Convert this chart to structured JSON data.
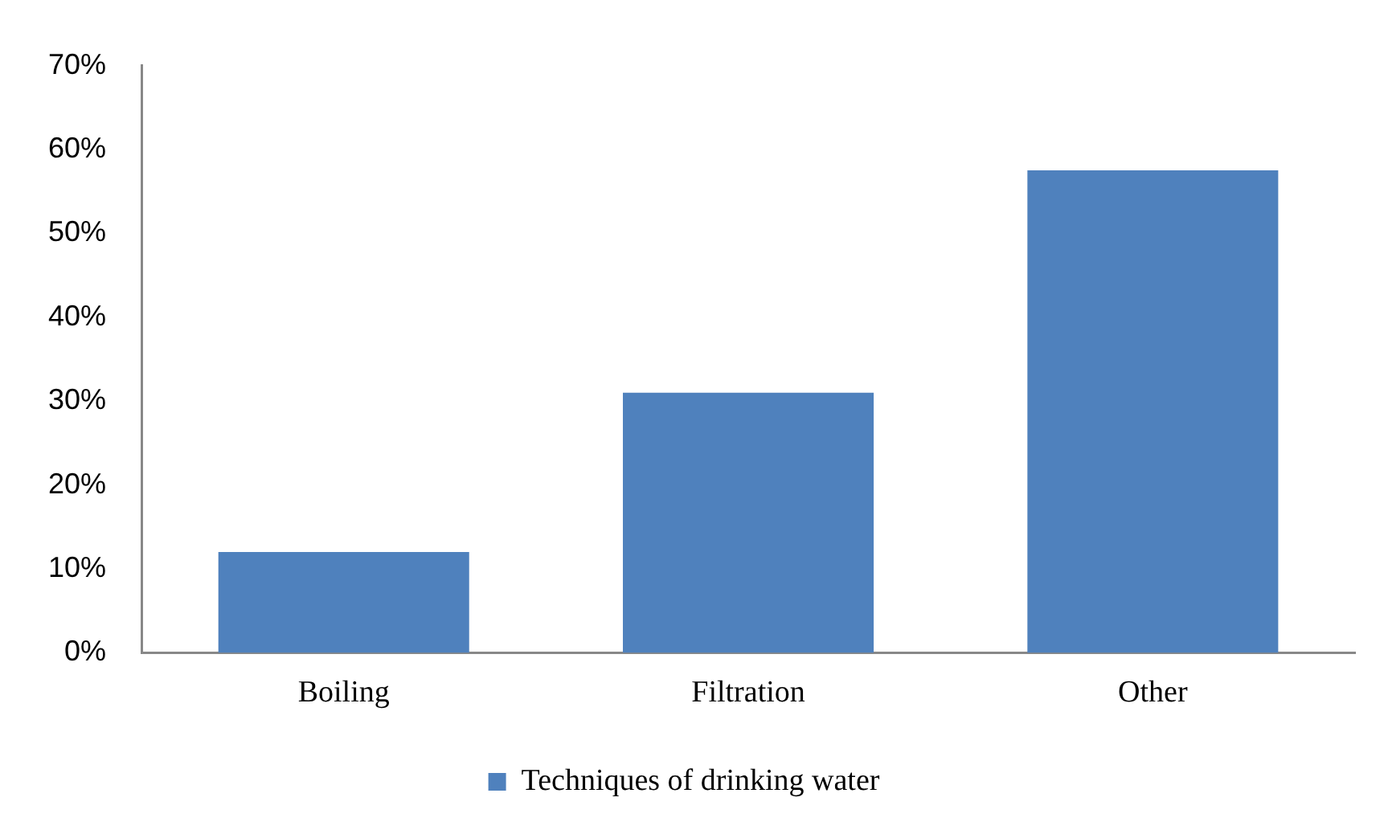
{
  "chart_data": {
    "type": "bar",
    "categories": [
      "Boiling",
      "Filtration",
      "Other"
    ],
    "series": [
      {
        "name": "Techniques of drinking water",
        "color": "#4f81bd",
        "values": [
          12,
          31,
          57.5
        ]
      }
    ],
    "ylim": [
      0,
      70
    ],
    "yticks": [
      {
        "value": 0,
        "label": "0%"
      },
      {
        "value": 10,
        "label": "10%"
      },
      {
        "value": 20,
        "label": "20%"
      },
      {
        "value": 30,
        "label": "30%"
      },
      {
        "value": 40,
        "label": "40%"
      },
      {
        "value": 50,
        "label": "50%"
      },
      {
        "value": 60,
        "label": "60%"
      },
      {
        "value": 70,
        "label": "70%"
      }
    ],
    "grid": false,
    "legend": "bottom"
  }
}
